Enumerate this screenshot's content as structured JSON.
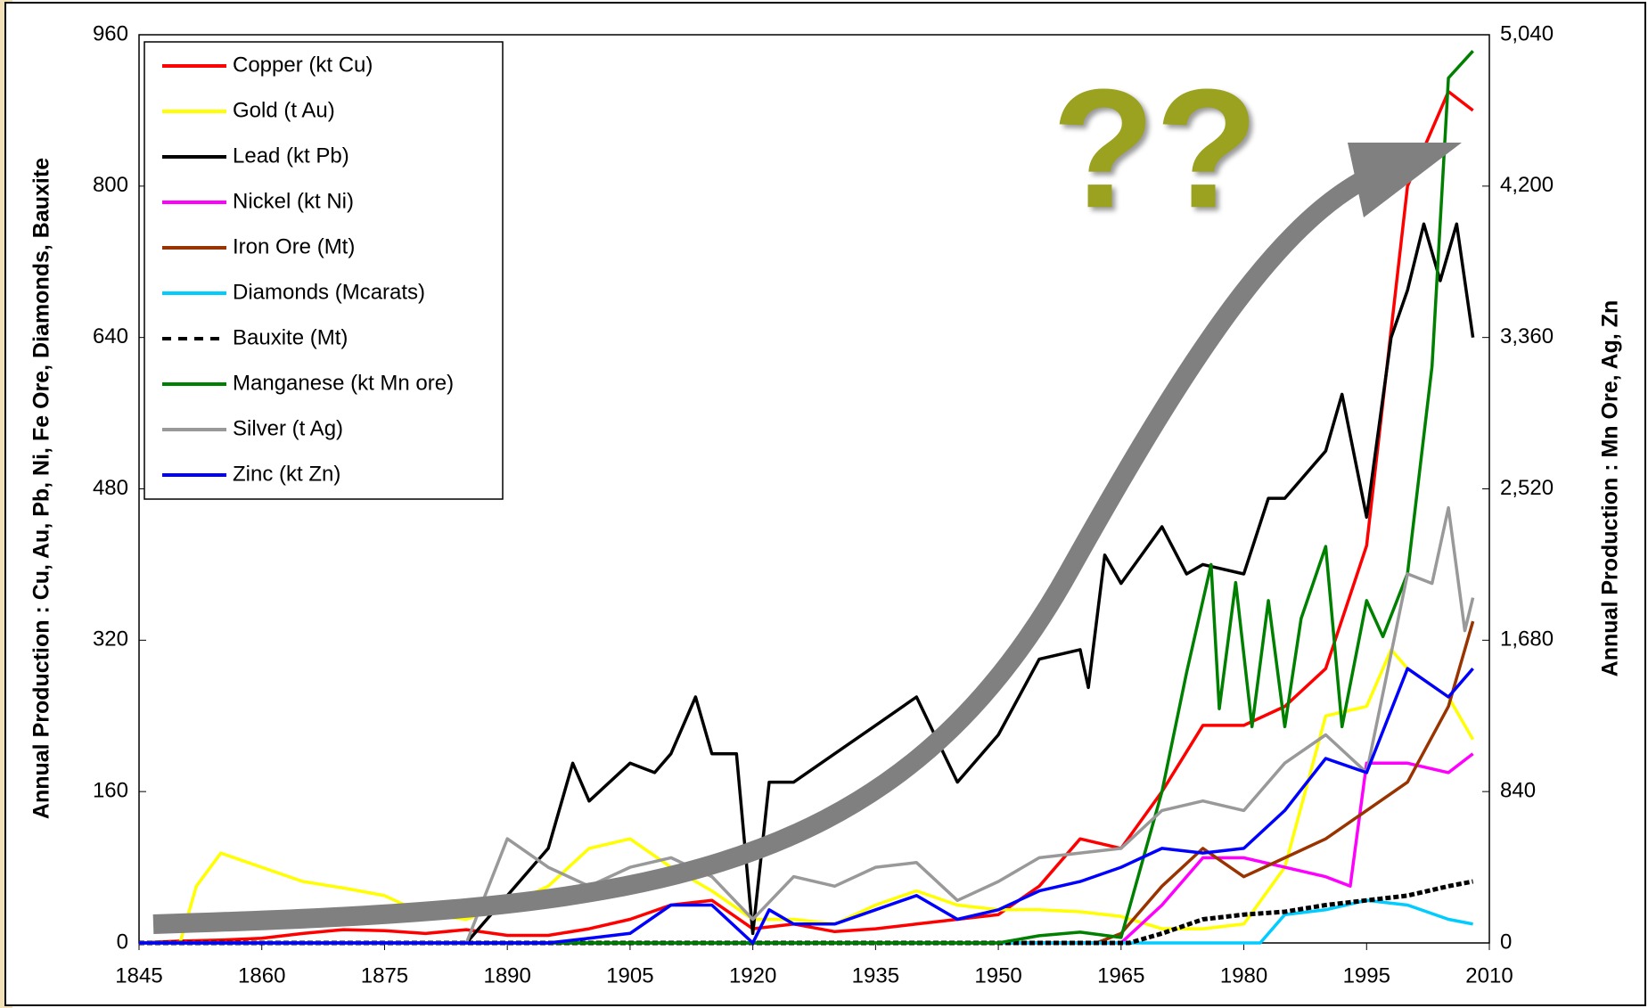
{
  "chart_data": {
    "type": "line",
    "y_label": "Annual Production : Cu, Au, Pb, Ni, Fe Ore, Diamonds, Bauxite",
    "y2_label": "Annual Production : Mn Ore, Ag, Zn",
    "annotation": "??",
    "xlim": [
      1845,
      2010
    ],
    "xticks": [
      1845,
      1860,
      1875,
      1890,
      1905,
      1920,
      1935,
      1950,
      1965,
      1980,
      1995,
      2010
    ],
    "ylim": [
      0,
      960
    ],
    "yticks": [
      0,
      160,
      320,
      480,
      640,
      800,
      960
    ],
    "y2lim": [
      0,
      5040
    ],
    "y2ticks": [
      0,
      {
        "value": 840,
        "label": "840"
      },
      {
        "value": 1680,
        "label": "1,680"
      },
      {
        "value": 2520,
        "label": "2,520"
      },
      {
        "value": 3360,
        "label": "3,360"
      },
      {
        "value": 4200,
        "label": "4,200"
      },
      {
        "value": 5040,
        "label": "5,040"
      }
    ],
    "legend": "top-left",
    "series": [
      {
        "name": "Copper (kt Cu)",
        "color": "#ff0000",
        "x": [
          1845,
          1850,
          1855,
          1860,
          1865,
          1870,
          1875,
          1880,
          1885,
          1890,
          1895,
          1900,
          1905,
          1910,
          1915,
          1920,
          1925,
          1930,
          1935,
          1940,
          1945,
          1950,
          1955,
          1960,
          1965,
          1970,
          1975,
          1980,
          1985,
          1990,
          1995,
          2000,
          2005,
          2008
        ],
        "values": [
          0,
          2,
          3,
          5,
          10,
          14,
          13,
          10,
          14,
          8,
          8,
          15,
          25,
          40,
          45,
          15,
          20,
          12,
          15,
          20,
          25,
          30,
          60,
          110,
          100,
          160,
          230,
          230,
          250,
          290,
          420,
          800,
          900,
          880
        ]
      },
      {
        "name": "Gold (t Au)",
        "color": "#ffff00",
        "x": [
          1845,
          1850,
          1852,
          1855,
          1860,
          1865,
          1870,
          1875,
          1880,
          1885,
          1890,
          1895,
          1900,
          1905,
          1910,
          1915,
          1920,
          1925,
          1930,
          1935,
          1940,
          1945,
          1950,
          1955,
          1960,
          1965,
          1970,
          1975,
          1980,
          1985,
          1990,
          1995,
          1998,
          2000,
          2005,
          2008
        ],
        "values": [
          0,
          0,
          60,
          95,
          80,
          65,
          58,
          50,
          30,
          25,
          40,
          60,
          100,
          110,
          80,
          55,
          25,
          25,
          20,
          40,
          55,
          40,
          35,
          35,
          33,
          28,
          15,
          15,
          20,
          80,
          240,
          250,
          310,
          290,
          260,
          215
        ]
      },
      {
        "name": "Lead (kt Pb)",
        "color": "#000000",
        "x": [
          1845,
          1885,
          1890,
          1895,
          1898,
          1900,
          1905,
          1908,
          1910,
          1913,
          1915,
          1918,
          1920,
          1922,
          1925,
          1930,
          1935,
          1940,
          1945,
          1950,
          1955,
          1960,
          1961,
          1963,
          1965,
          1970,
          1973,
          1975,
          1980,
          1983,
          1985,
          1990,
          1992,
          1995,
          1998,
          2000,
          2002,
          2004,
          2006,
          2008
        ],
        "values": [
          0,
          0,
          50,
          100,
          190,
          150,
          190,
          180,
          200,
          260,
          200,
          200,
          10,
          170,
          170,
          200,
          230,
          260,
          170,
          220,
          300,
          310,
          270,
          410,
          380,
          440,
          390,
          400,
          390,
          470,
          470,
          520,
          580,
          450,
          640,
          690,
          760,
          700,
          760,
          640
        ]
      },
      {
        "name": "Nickel (kt Ni)",
        "color": "#ff00ff",
        "x": [
          1845,
          1965,
          1970,
          1975,
          1980,
          1985,
          1990,
          1993,
          1995,
          2000,
          2005,
          2008
        ],
        "values": [
          0,
          0,
          40,
          90,
          90,
          80,
          70,
          60,
          190,
          190,
          180,
          200
        ]
      },
      {
        "name": "Iron Ore (Mt)",
        "color": "#993300",
        "x": [
          1845,
          1962,
          1965,
          1970,
          1975,
          1980,
          1985,
          1990,
          1995,
          2000,
          2005,
          2008
        ],
        "values": [
          0,
          0,
          10,
          60,
          100,
          70,
          90,
          110,
          140,
          170,
          250,
          340
        ]
      },
      {
        "name": "Diamonds (Mcarats)",
        "color": "#00ccff",
        "x": [
          1845,
          1982,
          1985,
          1990,
          1995,
          2000,
          2005,
          2008
        ],
        "values": [
          0,
          0,
          30,
          35,
          45,
          40,
          25,
          20
        ]
      },
      {
        "name": "Bauxite (Mt)",
        "color": "#000000",
        "dashed": true,
        "x": [
          1845,
          1966,
          1970,
          1975,
          1980,
          1985,
          1990,
          1995,
          2000,
          2005,
          2008
        ],
        "values": [
          0,
          0,
          10,
          25,
          30,
          33,
          40,
          45,
          50,
          60,
          65
        ]
      },
      {
        "name": "Manganese (kt Mn ore)",
        "color": "#008000",
        "axis": "y2",
        "x": [
          1845,
          1950,
          1955,
          1960,
          1965,
          1970,
          1973,
          1976,
          1977,
          1979,
          1981,
          1983,
          1985,
          1987,
          1990,
          1992,
          1995,
          1997,
          2000,
          2003,
          2005,
          2008
        ],
        "values": [
          0,
          0,
          40,
          60,
          30,
          840,
          1500,
          2100,
          1300,
          2000,
          1200,
          1900,
          1200,
          1800,
          2200,
          1200,
          1900,
          1700,
          2050,
          3200,
          4800,
          4950
        ]
      },
      {
        "name": "Silver (t Ag)",
        "color": "#999999",
        "axis": "y2",
        "x": [
          1845,
          1885,
          1890,
          1895,
          1900,
          1905,
          1910,
          1915,
          1920,
          1925,
          1930,
          1935,
          1940,
          1945,
          1950,
          1955,
          1960,
          1965,
          1970,
          1975,
          1980,
          1985,
          1990,
          1995,
          2000,
          2003,
          2005,
          2007,
          2008
        ],
        "values": [
          0,
          0,
          578,
          420,
          315,
          420,
          473,
          368,
          131,
          368,
          315,
          420,
          446,
          236,
          341,
          473,
          499,
          525,
          735,
          788,
          735,
          998,
          1155,
          945,
          2048,
          1995,
          2415,
          1733,
          1916
        ]
      },
      {
        "name": "Zinc (kt Zn)",
        "color": "#0000ff",
        "axis": "y2",
        "x": [
          1845,
          1890,
          1895,
          1900,
          1905,
          1910,
          1915,
          1920,
          1922,
          1925,
          1930,
          1935,
          1940,
          1945,
          1950,
          1955,
          1960,
          1965,
          1970,
          1975,
          1980,
          1985,
          1990,
          1995,
          2000,
          2005,
          2008
        ],
        "values": [
          0,
          0,
          0,
          26,
          53,
          210,
          210,
          0,
          184,
          105,
          105,
          184,
          263,
          131,
          184,
          289,
          341,
          420,
          525,
          499,
          525,
          735,
          1024,
          945,
          1523,
          1365,
          1523
        ]
      }
    ]
  }
}
